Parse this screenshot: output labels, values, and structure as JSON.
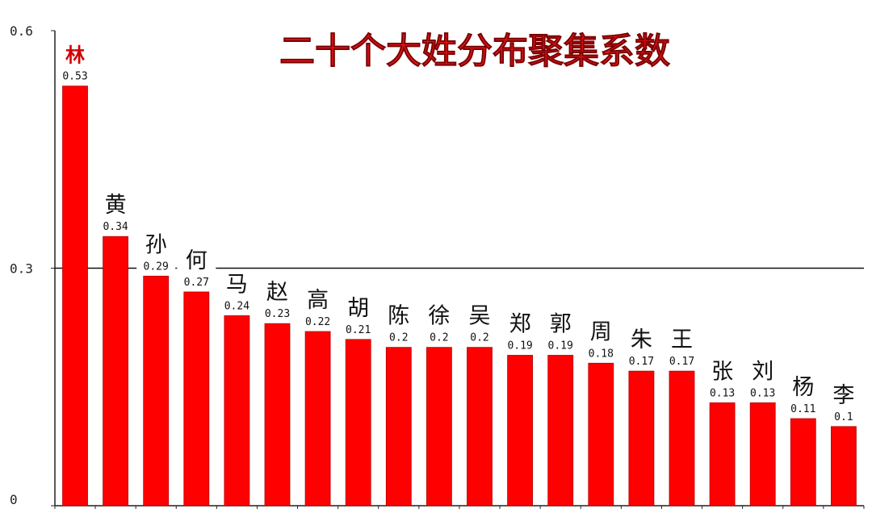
{
  "chart_data": {
    "type": "bar",
    "title": "二十个大姓分布聚集系数",
    "categories": [
      "林",
      "黄",
      "孙",
      "何",
      "马",
      "赵",
      "高",
      "胡",
      "陈",
      "徐",
      "吴",
      "郑",
      "郭",
      "周",
      "朱",
      "王",
      "张",
      "刘",
      "杨",
      "李"
    ],
    "values": [
      0.53,
      0.34,
      0.29,
      0.27,
      0.24,
      0.23,
      0.22,
      0.21,
      0.2,
      0.2,
      0.2,
      0.19,
      0.19,
      0.18,
      0.17,
      0.17,
      0.13,
      0.13,
      0.11,
      0.1
    ],
    "value_labels": [
      "0.53",
      "0.34",
      "0.29",
      "0.27",
      "0.24",
      "0.23",
      "0.22",
      "0.21",
      "0.2",
      "0.2",
      "0.2",
      "0.19",
      "0.19",
      "0.18",
      "0.17",
      "0.17",
      "0.13",
      "0.13",
      "0.11",
      "0.1"
    ],
    "ylim": [
      0,
      0.6
    ],
    "yticks": [
      0,
      0.3,
      0.6
    ],
    "ytick_labels": [
      "0",
      "0.3",
      "0.6"
    ],
    "reference_line": 0.3,
    "highlight_category": "林",
    "colors": {
      "bar": "#ff0000",
      "bar_edge": "#b30000",
      "title": "#e0141a",
      "highlight_label": "#d40000"
    }
  }
}
